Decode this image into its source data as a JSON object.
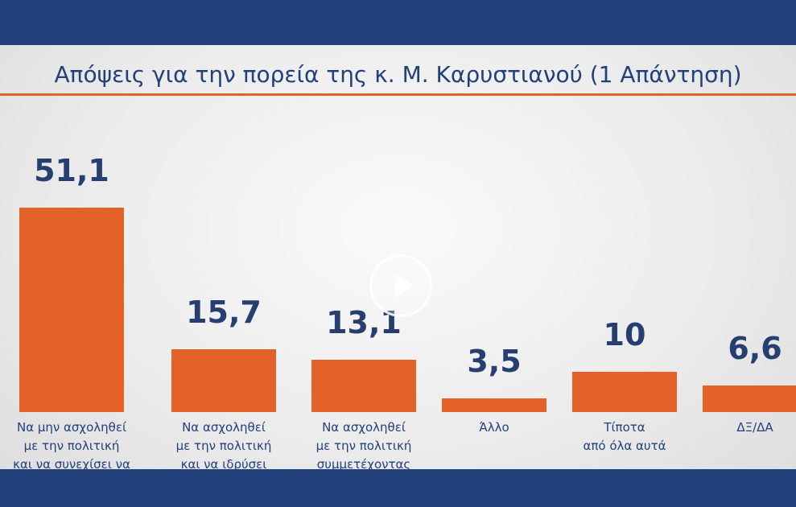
{
  "chart_data": {
    "type": "bar",
    "title": "Απόψεις για την πορεία της κ. Μ. Καρυστιανού (1 Απάντηση)",
    "categories": [
      "Να μην ασχοληθεί\nμε την πολιτική\nκαι να συνεχίσει να",
      "Να ασχοληθεί\nμε την πολιτική\nκαι να ιδρύσει",
      "Να ασχοληθεί\nμε την πολιτική\nσυμμετέχοντας",
      "Άλλο",
      "Τίποτα\nαπό όλα αυτά",
      "ΔΞ/ΔΑ"
    ],
    "values": [
      51.1,
      15.7,
      13.1,
      3.5,
      10,
      6.6
    ],
    "value_labels": [
      "51,1",
      "15,7",
      "13,1",
      "3,5",
      "10",
      "6,6"
    ],
    "color": "#e2622a"
  }
}
